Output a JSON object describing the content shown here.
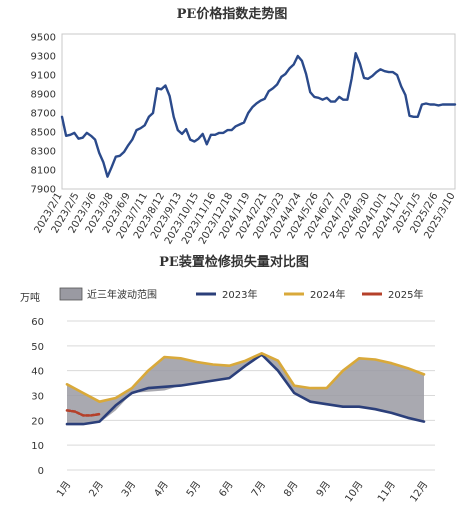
{
  "chart_data": [
    {
      "type": "line",
      "title": "PE价格指数走势图",
      "xlabel": "",
      "ylabel": "",
      "ylim": [
        7900,
        9500
      ],
      "yticks": [
        7900,
        8100,
        8300,
        8500,
        8700,
        8900,
        9100,
        9300,
        9500
      ],
      "xtick_labels": [
        "2023/2/1",
        "2023/2/5",
        "2023/3/6",
        "2023/3/8",
        "2023/6/9",
        "2023/7/11",
        "2023/8/12",
        "2023/9/13",
        "2023/10/15",
        "2023/11/16",
        "2023/12/18",
        "2024/1/19",
        "2024/2/21",
        "2024/3/23",
        "2024/4/24",
        "2024/5/26",
        "2024/6/27",
        "2024/7/29",
        "2024/8/30",
        "2024/10/1",
        "2024/11/2",
        "2025/1/5",
        "2025/2/6",
        "2025/3/10"
      ],
      "grid": false,
      "series": [
        {
          "color": "#2b4a8b",
          "x": [
            0,
            1,
            2,
            3,
            4,
            5,
            6,
            7,
            8,
            9,
            10,
            11,
            12,
            13,
            14,
            15,
            16,
            17,
            18,
            19,
            20,
            21,
            22,
            23,
            24,
            25,
            26,
            27,
            28,
            29,
            30,
            31,
            32,
            33,
            34,
            35,
            36,
            37,
            38,
            39,
            40,
            41,
            42,
            43,
            44,
            45,
            46,
            47,
            48,
            49,
            50,
            51,
            52,
            53,
            54,
            55,
            56,
            57,
            58,
            59,
            60,
            61,
            62,
            63,
            64,
            65,
            66,
            67,
            68,
            69,
            70,
            71,
            72,
            73,
            74,
            75,
            76,
            77,
            78,
            79,
            80,
            81,
            82,
            83,
            84,
            85,
            86,
            87,
            88,
            89,
            90,
            91,
            92,
            93,
            94,
            95
          ],
          "values": [
            8660,
            8460,
            8470,
            8490,
            8430,
            8440,
            8490,
            8460,
            8420,
            8280,
            8180,
            8030,
            8130,
            8240,
            8250,
            8290,
            8360,
            8420,
            8520,
            8540,
            8570,
            8660,
            8700,
            8960,
            8950,
            8990,
            8880,
            8660,
            8520,
            8480,
            8530,
            8420,
            8400,
            8430,
            8480,
            8370,
            8470,
            8470,
            8490,
            8490,
            8520,
            8520,
            8560,
            8580,
            8600,
            8700,
            8760,
            8800,
            8830,
            8850,
            8930,
            8960,
            9000,
            9080,
            9110,
            9170,
            9210,
            9300,
            9250,
            9110,
            8920,
            8870,
            8860,
            8840,
            8860,
            8820,
            8820,
            8870,
            8840,
            8840,
            9060,
            9330,
            9220,
            9070,
            9060,
            9090,
            9130,
            9160,
            9140,
            9130,
            9130,
            9100,
            8980,
            8890,
            8670,
            8660,
            8660,
            8790,
            8800,
            8790,
            8790,
            8780,
            8790,
            8790,
            8790,
            8790
          ]
        }
      ]
    },
    {
      "type": "line",
      "title": "PE装置检修损失量对比图",
      "ylabel": "万吨",
      "xlabel": "",
      "ylim": [
        0,
        60
      ],
      "yticks": [
        0,
        10,
        20,
        30,
        40,
        50,
        60
      ],
      "categories": [
        "1月",
        "2月",
        "3月",
        "4月",
        "5月",
        "6月",
        "7月",
        "8月",
        "9月",
        "10月",
        "11月",
        "12月"
      ],
      "legend_position": "top",
      "grid": true,
      "band": {
        "name": "近三年波动范围",
        "color": "#9a9aa2",
        "x": [
          0,
          0.5,
          1,
          1.5,
          2,
          2.5,
          3,
          3.5,
          4,
          4.5,
          5,
          5.5,
          6,
          6.5,
          7,
          7.5,
          8,
          8.5,
          9,
          9.5,
          10,
          10.5,
          11
        ],
        "upper": [
          34.5,
          31,
          27.5,
          29,
          33,
          40,
          45.5,
          45,
          43.5,
          42.5,
          42,
          44,
          47,
          44,
          34,
          33,
          33,
          40,
          45,
          44.5,
          43,
          41,
          38.5
        ],
        "lower": [
          18.5,
          18.5,
          19,
          24,
          31,
          31.5,
          32,
          34,
          35,
          36,
          37,
          42,
          46.5,
          40,
          31,
          27.5,
          26,
          25.5,
          25.5,
          24.5,
          23,
          21,
          19.5
        ]
      },
      "series": [
        {
          "name": "2023年",
          "color": "#2b3f7a",
          "x": [
            0,
            0.5,
            1,
            1.5,
            2,
            2.5,
            3,
            3.5,
            4,
            4.5,
            5,
            5.5,
            6,
            6.5,
            7,
            7.5,
            8,
            8.5,
            9,
            9.5,
            10,
            10.5,
            11
          ],
          "values": [
            18.5,
            18.5,
            19.5,
            26,
            31,
            33,
            33.5,
            34,
            35,
            36,
            37,
            42,
            46.5,
            40,
            31,
            27.5,
            26.5,
            25.5,
            25.5,
            24.5,
            23,
            21,
            19.5
          ]
        },
        {
          "name": "2024年",
          "color": "#d9a93a",
          "x": [
            0,
            0.5,
            1,
            1.5,
            2,
            2.5,
            3,
            3.5,
            4,
            4.5,
            5,
            5.5,
            6,
            6.5,
            7,
            7.5,
            8,
            8.5,
            9,
            9.5,
            10,
            10.5,
            11
          ],
          "values": [
            34.5,
            31,
            27.5,
            29,
            33,
            40,
            45.5,
            45,
            43.5,
            42.5,
            42,
            44,
            47,
            44,
            34,
            33,
            33,
            40,
            45,
            44.5,
            43,
            41,
            38.5
          ]
        },
        {
          "name": "2025年",
          "color": "#b5402a",
          "x": [
            0,
            0.25,
            0.5,
            0.75,
            1
          ],
          "values": [
            24,
            23.5,
            22,
            22,
            22.5
          ]
        }
      ]
    }
  ]
}
